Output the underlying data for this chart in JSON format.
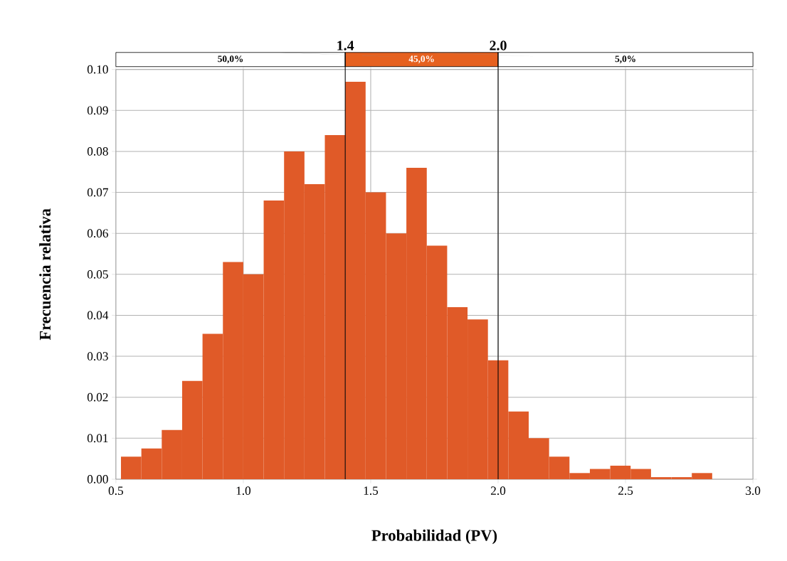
{
  "chart_data": {
    "type": "histogram",
    "xlabel": "Probabilidad (PV)",
    "ylabel": "Frecuencia relativa",
    "bins": [
      0.52,
      0.6,
      0.68,
      0.76,
      0.84,
      0.92,
      1.0,
      1.08,
      1.16,
      1.24,
      1.32,
      1.4,
      1.48,
      1.56,
      1.64,
      1.72,
      1.8,
      1.88,
      1.96,
      2.04,
      2.12,
      2.2,
      2.28,
      2.36,
      2.44,
      2.52,
      2.6,
      2.68,
      2.76,
      2.84
    ],
    "values": [
      0.0055,
      0.0075,
      0.012,
      0.024,
      0.0355,
      0.053,
      0.05,
      0.068,
      0.08,
      0.072,
      0.084,
      0.097,
      0.07,
      0.06,
      0.076,
      0.057,
      0.042,
      0.039,
      0.029,
      0.0165,
      0.01,
      0.0055,
      0.0015,
      0.0025,
      0.0033,
      0.0025,
      0.0005,
      0.0005,
      0.0015
    ],
    "color": "#e05a28",
    "xlim": [
      0.5,
      3.0
    ],
    "ylim": [
      0,
      0.1
    ],
    "xticks": [
      {
        "value": 0.5,
        "label": "0.5"
      },
      {
        "value": 1.0,
        "label": "1.0"
      },
      {
        "value": 1.5,
        "label": "1.5"
      },
      {
        "value": 2.0,
        "label": "2.0"
      },
      {
        "value": 2.5,
        "label": "2.5"
      },
      {
        "value": 3.0,
        "label": "3.0"
      }
    ],
    "yticks": [
      {
        "value": 0,
        "label": "0.00"
      },
      {
        "value": 0.01,
        "label": "0.01"
      },
      {
        "value": 0.02,
        "label": "0.02"
      },
      {
        "value": 0.03,
        "label": "0.03"
      },
      {
        "value": 0.04,
        "label": "0.04"
      },
      {
        "value": 0.05,
        "label": "0.05"
      },
      {
        "value": 0.06,
        "label": "0.06"
      },
      {
        "value": 0.07,
        "label": "0.07"
      },
      {
        "value": 0.08,
        "label": "0.08"
      },
      {
        "value": 0.09,
        "label": "0.09"
      },
      {
        "value": 0.1,
        "label": "0.10"
      }
    ],
    "grid": true,
    "ref_lines": [
      {
        "axis": "x",
        "value": 1.4,
        "label": "1.4"
      },
      {
        "axis": "x",
        "value": 2.0,
        "label": "2.0"
      }
    ],
    "annotations": [
      "50,0%",
      "45,0%",
      "5,0%"
    ]
  }
}
